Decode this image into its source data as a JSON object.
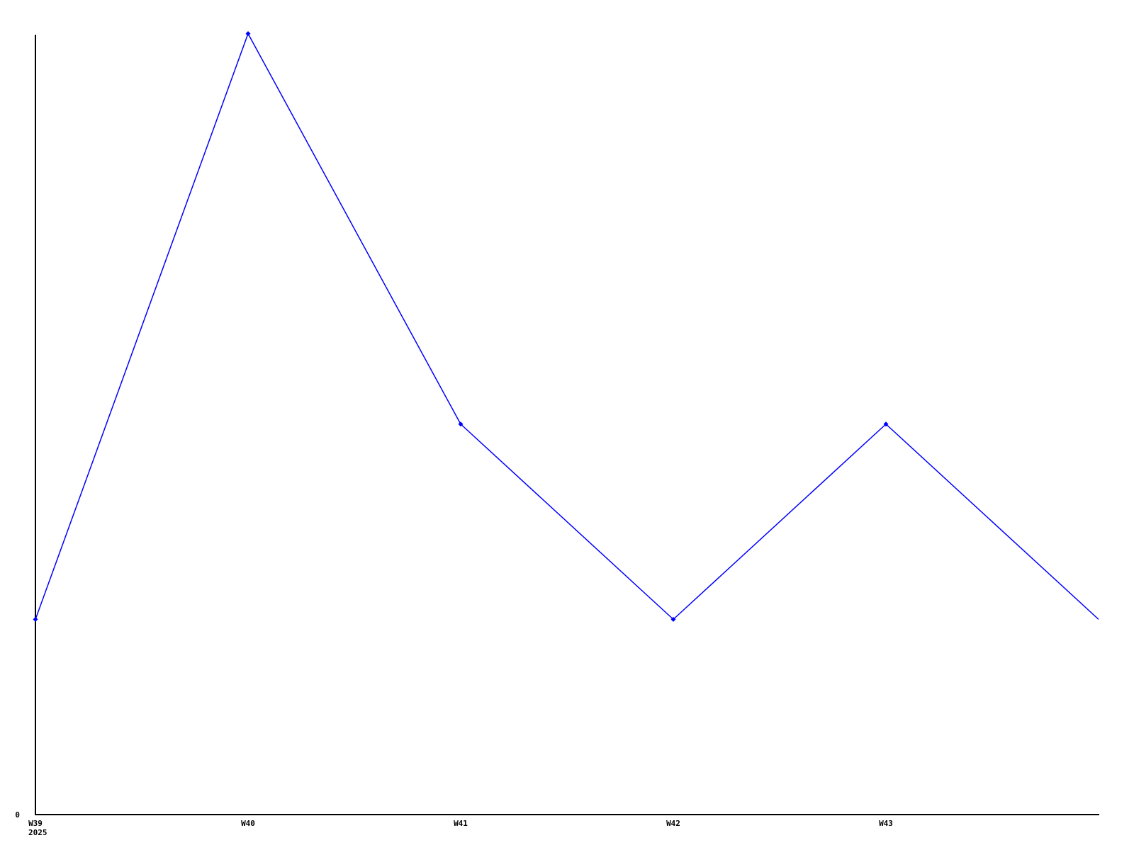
{
  "chart_data": {
    "type": "line",
    "x_labels": [
      "W39",
      "W40",
      "W41",
      "W42",
      "W43",
      ""
    ],
    "x_sublabels": [
      "2025",
      "",
      "",
      "",
      "",
      ""
    ],
    "values": [
      1,
      4,
      2,
      1,
      2,
      1
    ],
    "ylim": [
      0,
      4
    ],
    "y_tick_labels": [
      {
        "value": 0,
        "label": "0"
      }
    ],
    "markers": [
      true,
      true,
      true,
      true,
      true,
      false
    ],
    "line_color": "#0000ff",
    "marker_color": "#0000ff",
    "axis_color": "#000000",
    "text_color": "#000000",
    "background_color": "#ffffff",
    "grid": false,
    "legend_position": "none"
  }
}
